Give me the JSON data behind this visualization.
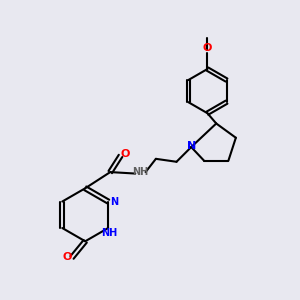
{
  "background_color": "#e8e8f0",
  "bond_color": "#000000",
  "atom_colors": {
    "N": "#0000ff",
    "O": "#ff0000",
    "C": "#000000",
    "H": "#808080"
  },
  "font_size": 7,
  "linewidth": 1.5
}
